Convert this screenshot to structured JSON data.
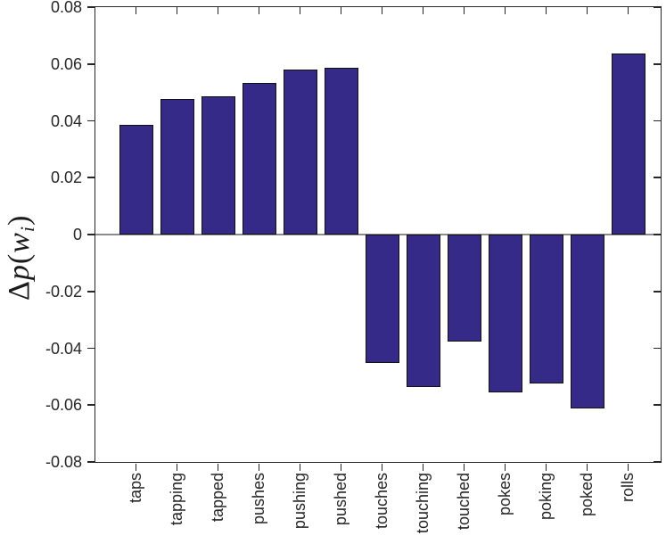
{
  "chart_data": {
    "type": "bar",
    "title": "",
    "xlabel": "",
    "ylabel": "Δp(w_i)",
    "ylabel_parts": {
      "delta": "Δ",
      "p": "p",
      "open": "(",
      "w": "w",
      "sub": "i",
      "close": ")"
    },
    "categories": [
      "taps",
      "tapping",
      "tapped",
      "pushes",
      "pushing",
      "pushed",
      "touches",
      "touching",
      "touched",
      "pokes",
      "poking",
      "poked",
      "rolls"
    ],
    "values": [
      0.0386,
      0.0478,
      0.0485,
      0.0532,
      0.058,
      0.0587,
      -0.0451,
      -0.0538,
      -0.0377,
      -0.0555,
      -0.0524,
      -0.0611,
      0.0638
    ],
    "ylim": [
      -0.08,
      0.08
    ],
    "ytick_values": [
      0.08,
      0.06,
      0.04,
      0.02,
      0,
      -0.02,
      -0.04,
      -0.06,
      -0.08
    ],
    "ytick_labels": [
      "0.08",
      "0.06",
      "0.04",
      "0.02",
      "0",
      "-0.02",
      "-0.04",
      "-0.06",
      "-0.08"
    ],
    "grid": false,
    "legend": null,
    "colors": {
      "bar_fill": "#352A87",
      "bar_edge": "#111111",
      "zero_line": "#8c8c8c",
      "axis": "#262626",
      "tick_label": "#262626",
      "background": "#ffffff"
    }
  }
}
